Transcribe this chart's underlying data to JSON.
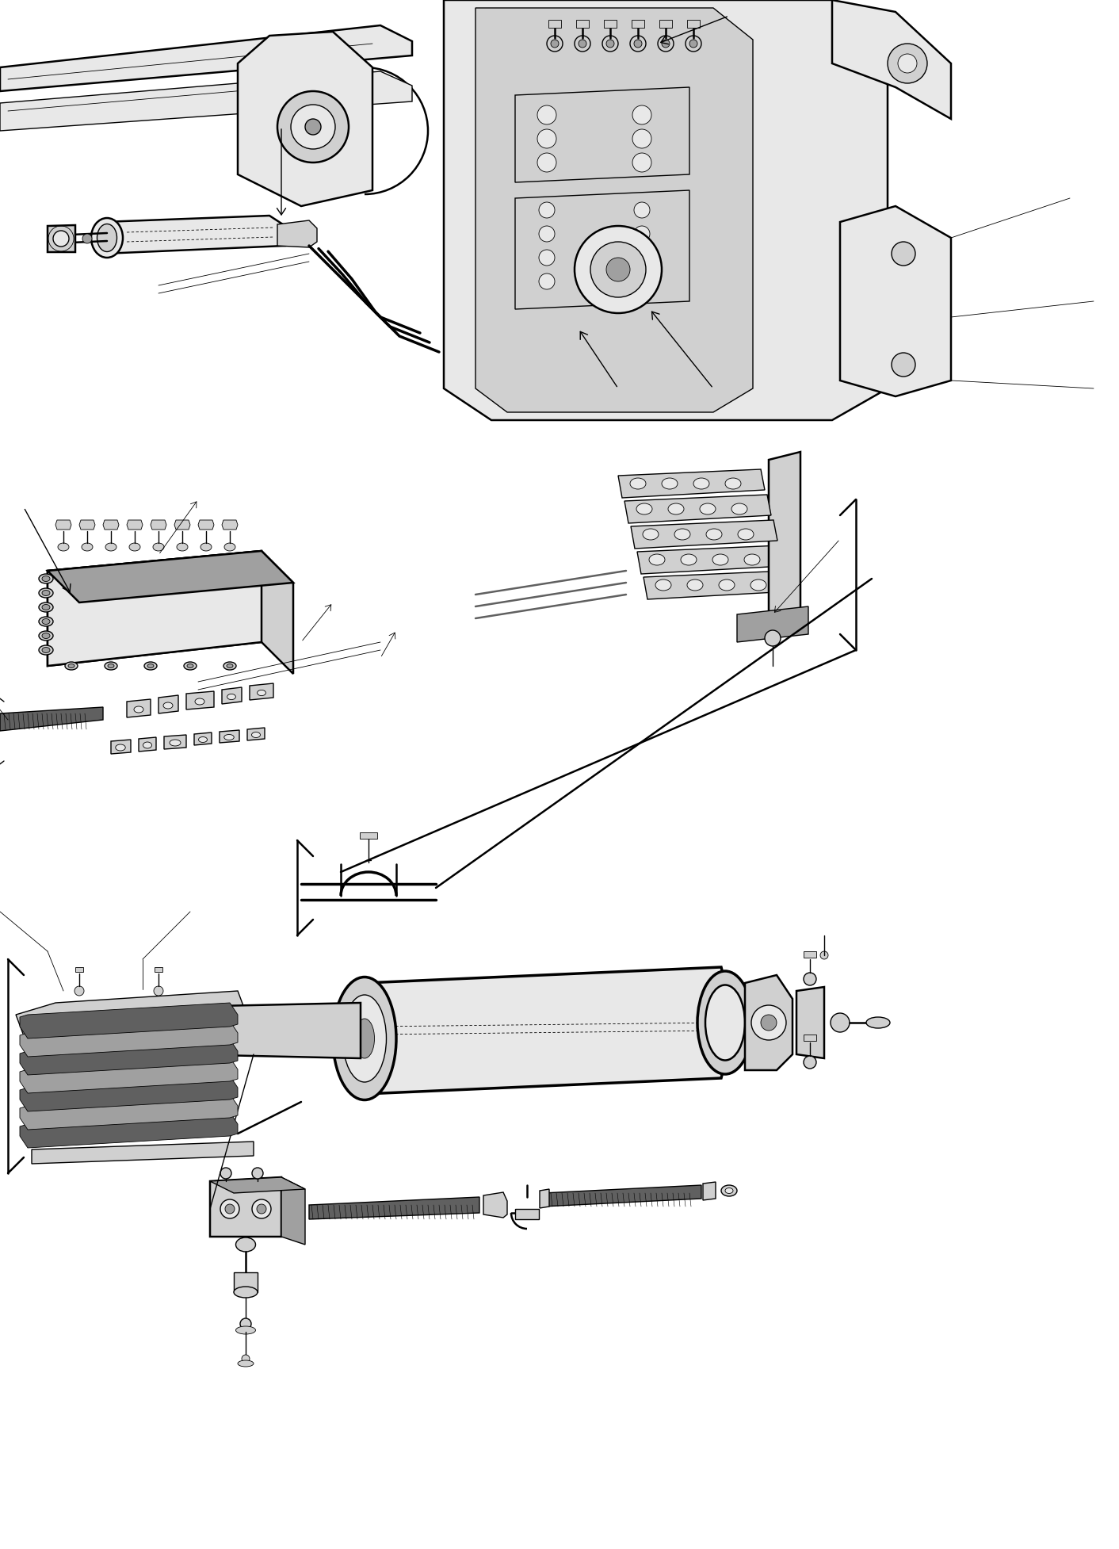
{
  "background_color": "#ffffff",
  "line_color": "#000000",
  "fig_width": 14.12,
  "fig_height": 19.54,
  "dpi": 100,
  "lw_thin": 0.6,
  "lw_med": 1.0,
  "lw_thick": 1.8,
  "lw_vthick": 2.5,
  "gray_light": "#e8e8e8",
  "gray_med": "#d0d0d0",
  "gray_dark": "#a0a0a0",
  "gray_vdark": "#606060"
}
